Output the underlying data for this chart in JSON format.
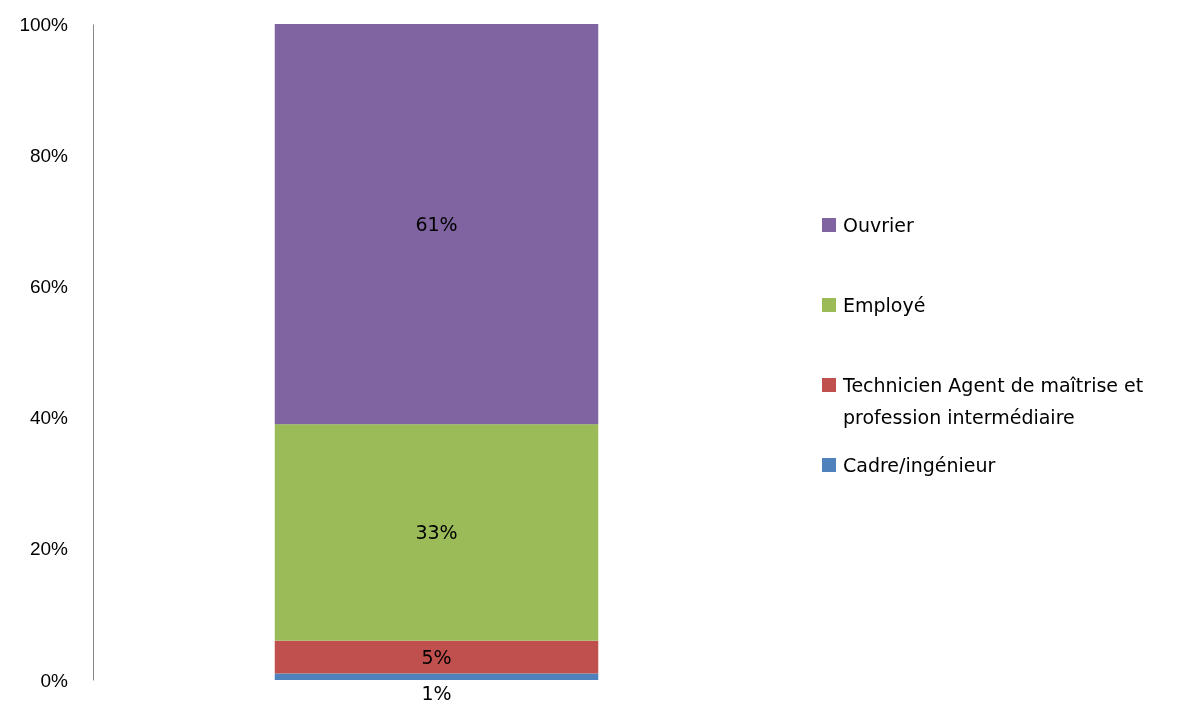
{
  "chart_data": {
    "type": "bar",
    "stacked": true,
    "categories": [
      null
    ],
    "series": [
      {
        "name": "Cadre/ingénieur",
        "color": "#4f81bd",
        "values": [
          1
        ],
        "value_labels": [
          "1%"
        ]
      },
      {
        "name": "Technicien Agent de maîtrise et profession intermédiaire",
        "color": "#c0504d",
        "values": [
          5
        ],
        "value_labels": [
          "5%"
        ]
      },
      {
        "name": "Employé",
        "color": "#9bbb59",
        "values": [
          33
        ],
        "value_labels": [
          "33%"
        ]
      },
      {
        "name": "Ouvrier",
        "color": "#8064a2",
        "values": [
          61
        ],
        "value_labels": [
          "61%"
        ]
      }
    ],
    "ylim": [
      0,
      100
    ],
    "yticks": [
      {
        "value": 0,
        "label": "0%"
      },
      {
        "value": 20,
        "label": "20%"
      },
      {
        "value": 40,
        "label": "40%"
      },
      {
        "value": 60,
        "label": "60%"
      },
      {
        "value": 80,
        "label": "80%"
      },
      {
        "value": 100,
        "label": "100%"
      }
    ],
    "grid": false,
    "legend": "right"
  }
}
